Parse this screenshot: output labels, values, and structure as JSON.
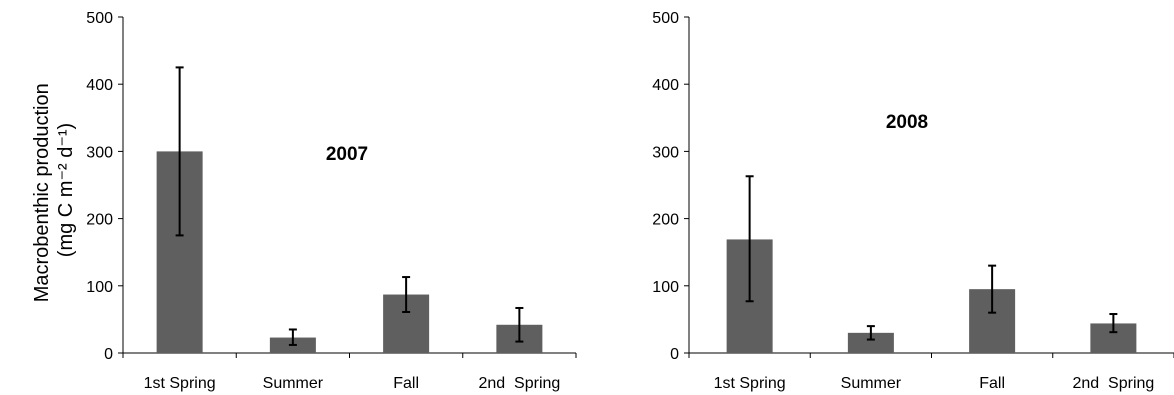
{
  "chart_data": [
    {
      "type": "bar",
      "title": "2007",
      "ylabel_line1": "Macrobenthic production",
      "ylabel_line2": "(mg C m⁻² d⁻¹)",
      "xlabel": "",
      "categories": [
        "1st Spring",
        "Summer",
        "Fall",
        "2nd  Spring"
      ],
      "values": [
        300,
        23,
        87,
        42
      ],
      "error_upper": [
        425,
        35,
        113,
        67
      ],
      "error_lower": [
        175,
        12,
        61,
        17
      ],
      "ylim": [
        0,
        500
      ],
      "yticks": [
        0,
        100,
        200,
        300,
        400,
        500
      ],
      "bar_color": "#5f5f5f",
      "grid": false
    },
    {
      "type": "bar",
      "title": "2008",
      "xlabel": "",
      "ylabel": "",
      "categories": [
        "1st Spring",
        "Summer",
        "Fall",
        "2nd  Spring"
      ],
      "values": [
        169,
        30,
        95,
        44
      ],
      "error_upper": [
        263,
        40,
        130,
        58
      ],
      "error_lower": [
        77,
        20,
        60,
        31
      ],
      "ylim": [
        0,
        500
      ],
      "yticks": [
        0,
        100,
        200,
        300,
        400,
        500
      ],
      "bar_color": "#5f5f5f",
      "grid": false
    }
  ]
}
